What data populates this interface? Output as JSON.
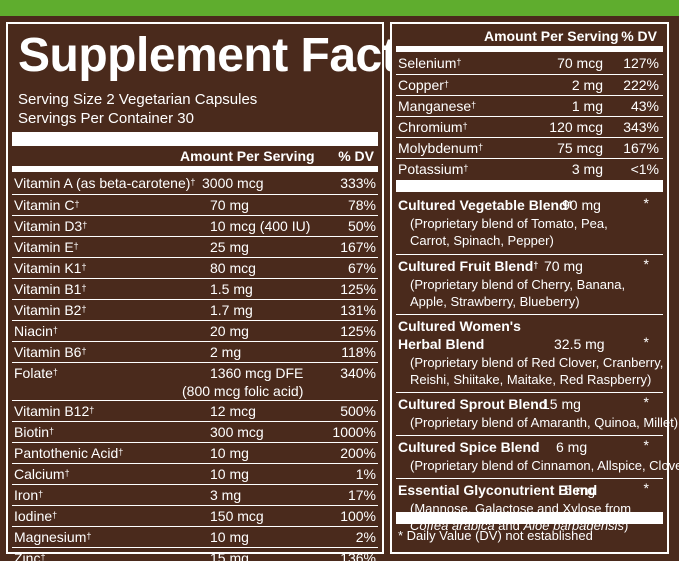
{
  "title": "Supplement Facts",
  "serving_size": "Serving Size 2 Vegetarian Capsules",
  "servings_per_container": "Servings Per Container 30",
  "header": {
    "amount": "Amount Per Serving",
    "dv": "% DV"
  },
  "dagger": "†",
  "left_rows": [
    {
      "name": "Vitamin A (as beta-carotene)",
      "amount": "3000 mcg",
      "dv": "333%"
    },
    {
      "name": "Vitamin C",
      "amount": "70 mg",
      "dv": "78%"
    },
    {
      "name": "Vitamin D3",
      "amount": "10 mcg (400 IU)",
      "dv": "50%"
    },
    {
      "name": "Vitamin E",
      "amount": "25 mg",
      "dv": "167%"
    },
    {
      "name": "Vitamin K1",
      "amount": "80 mcg",
      "dv": "67%"
    },
    {
      "name": "Vitamin B1",
      "amount": "1.5 mg",
      "dv": "125%"
    },
    {
      "name": "Vitamin B2",
      "amount": "1.7 mg",
      "dv": "131%"
    },
    {
      "name": "Niacin",
      "amount": "20 mg",
      "dv": "125%"
    },
    {
      "name": "Vitamin B6",
      "amount": "2 mg",
      "dv": "118%"
    },
    {
      "name": "Folate",
      "amount": "1360 mcg DFE",
      "amount2": "(800 mcg folic acid)",
      "dv": "340%"
    },
    {
      "name": "Vitamin B12",
      "amount": "12 mcg",
      "dv": "500%"
    },
    {
      "name": "Biotin",
      "amount": "300 mcg",
      "dv": "1000%"
    },
    {
      "name": "Pantothenic Acid",
      "amount": "10 mg",
      "dv": "200%"
    },
    {
      "name": "Calcium",
      "amount": "10 mg",
      "dv": "1%"
    },
    {
      "name": "Iron",
      "amount": "3 mg",
      "dv": "17%"
    },
    {
      "name": "Iodine",
      "amount": "150 mcg",
      "dv": "100%"
    },
    {
      "name": "Magnesium",
      "amount": "10 mg",
      "dv": "2%"
    },
    {
      "name": "Zinc",
      "amount": "15 mg",
      "dv": "136%"
    }
  ],
  "right_rows": [
    {
      "name": "Selenium",
      "amount": "70 mcg",
      "dv": "127%"
    },
    {
      "name": "Copper",
      "amount": "2 mg",
      "dv": "222%"
    },
    {
      "name": "Manganese",
      "amount": "1 mg",
      "dv": "43%"
    },
    {
      "name": "Chromium",
      "amount": "120 mcg",
      "dv": "343%"
    },
    {
      "name": "Molybdenum",
      "amount": "75 mcg",
      "dv": "167%"
    },
    {
      "name": "Potassium",
      "amount": "3 mg",
      "dv": "<1%"
    }
  ],
  "blends": [
    {
      "name": "Cultured Vegetable Blend",
      "amount": "90 mg",
      "dv": "*",
      "lines": [
        "(Proprietary blend of Tomato, Pea,",
        "Carrot, Spinach, Pepper)"
      ]
    },
    {
      "name": "Cultured Fruit Blend",
      "amount": "70 mg",
      "dv": "*",
      "lines": [
        "(Proprietary blend of Cherry, Banana,",
        "Apple, Strawberry, Blueberry)"
      ]
    },
    {
      "name": "Cultured Women's",
      "name2": "Herbal Blend",
      "amount": "32.5 mg",
      "dv": "*",
      "lines": [
        "(Proprietary blend of Red Clover, Cranberry,",
        "Reishi, Shiitake, Maitake, Red Raspberry)"
      ]
    },
    {
      "name": "Cultured Sprout Blend",
      "amount": "15 mg",
      "dv": "*",
      "lines": [
        "(Proprietary blend of Amaranth, Quinoa, Millet)"
      ]
    },
    {
      "name": "Cultured Spice Blend",
      "amount": "6 mg",
      "dv": "*",
      "lines": [
        "(Proprietary blend of Cinnamon, Allspice, Clove)"
      ]
    },
    {
      "name": "Essential Glyconutrient Blend",
      "amount": "5 mg",
      "dv": "*",
      "lines": [
        "(Mannose, Galactose and Xylose from"
      ],
      "italic_a": "Coffea arabica",
      "and_text": " and ",
      "italic_b": "Aloe barbadensis",
      "close": ")"
    }
  ],
  "footnote": "* Daily Value (DV) not established",
  "colors": {
    "background": "#4a2a1c",
    "text": "#ffffff",
    "top_bar": "#5fad2e"
  }
}
